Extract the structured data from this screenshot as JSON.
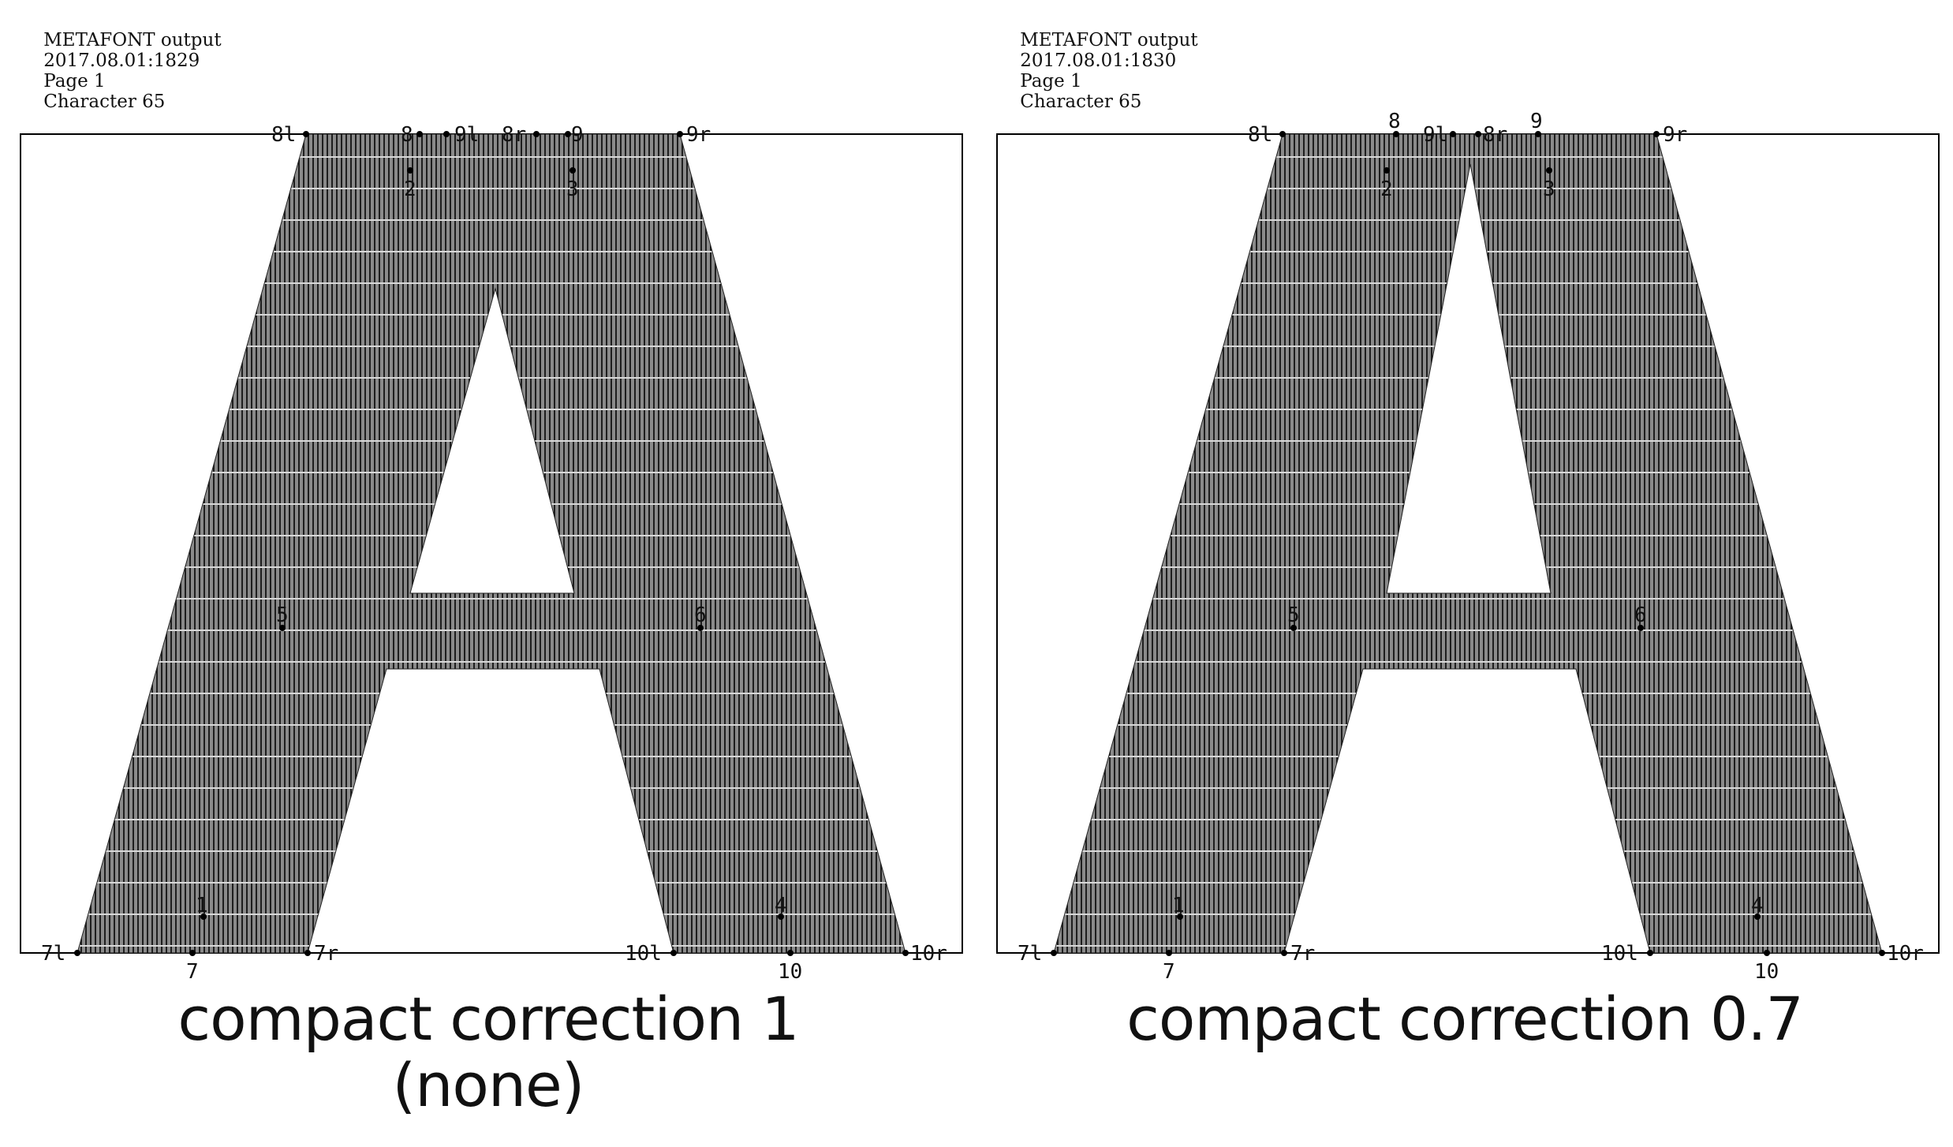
{
  "panels": [
    {
      "header": {
        "prefix": "METAFONT output",
        "datetime": "2017.08.01:1829",
        "page": "Page 1",
        "character": "Character 65"
      },
      "caption_line1": "compact correction 1",
      "caption_line2": "(none)",
      "labels": [
        "8l",
        "8",
        "9l",
        "8r",
        "9",
        "9r",
        "2",
        "3",
        "5",
        "6",
        "1",
        "4",
        "7l",
        "7",
        "7r",
        "10l",
        "10",
        "10r"
      ]
    },
    {
      "header": {
        "prefix": "METAFONT output",
        "datetime": "2017.08.01:1830",
        "page": "Page 1",
        "character": "Character 65"
      },
      "caption_line1": "compact correction 0.7",
      "caption_line2": "",
      "labels": [
        "8l",
        "8",
        "9l",
        "8r",
        "9",
        "9r",
        "2",
        "3",
        "5",
        "6",
        "1",
        "4",
        "7l",
        "7",
        "7r",
        "10l",
        "10",
        "10r"
      ]
    }
  ],
  "colors": {
    "fill": "#7a7a7a",
    "hatch": "#1e1e1e",
    "frame": "#000000",
    "background": "#ffffff"
  }
}
